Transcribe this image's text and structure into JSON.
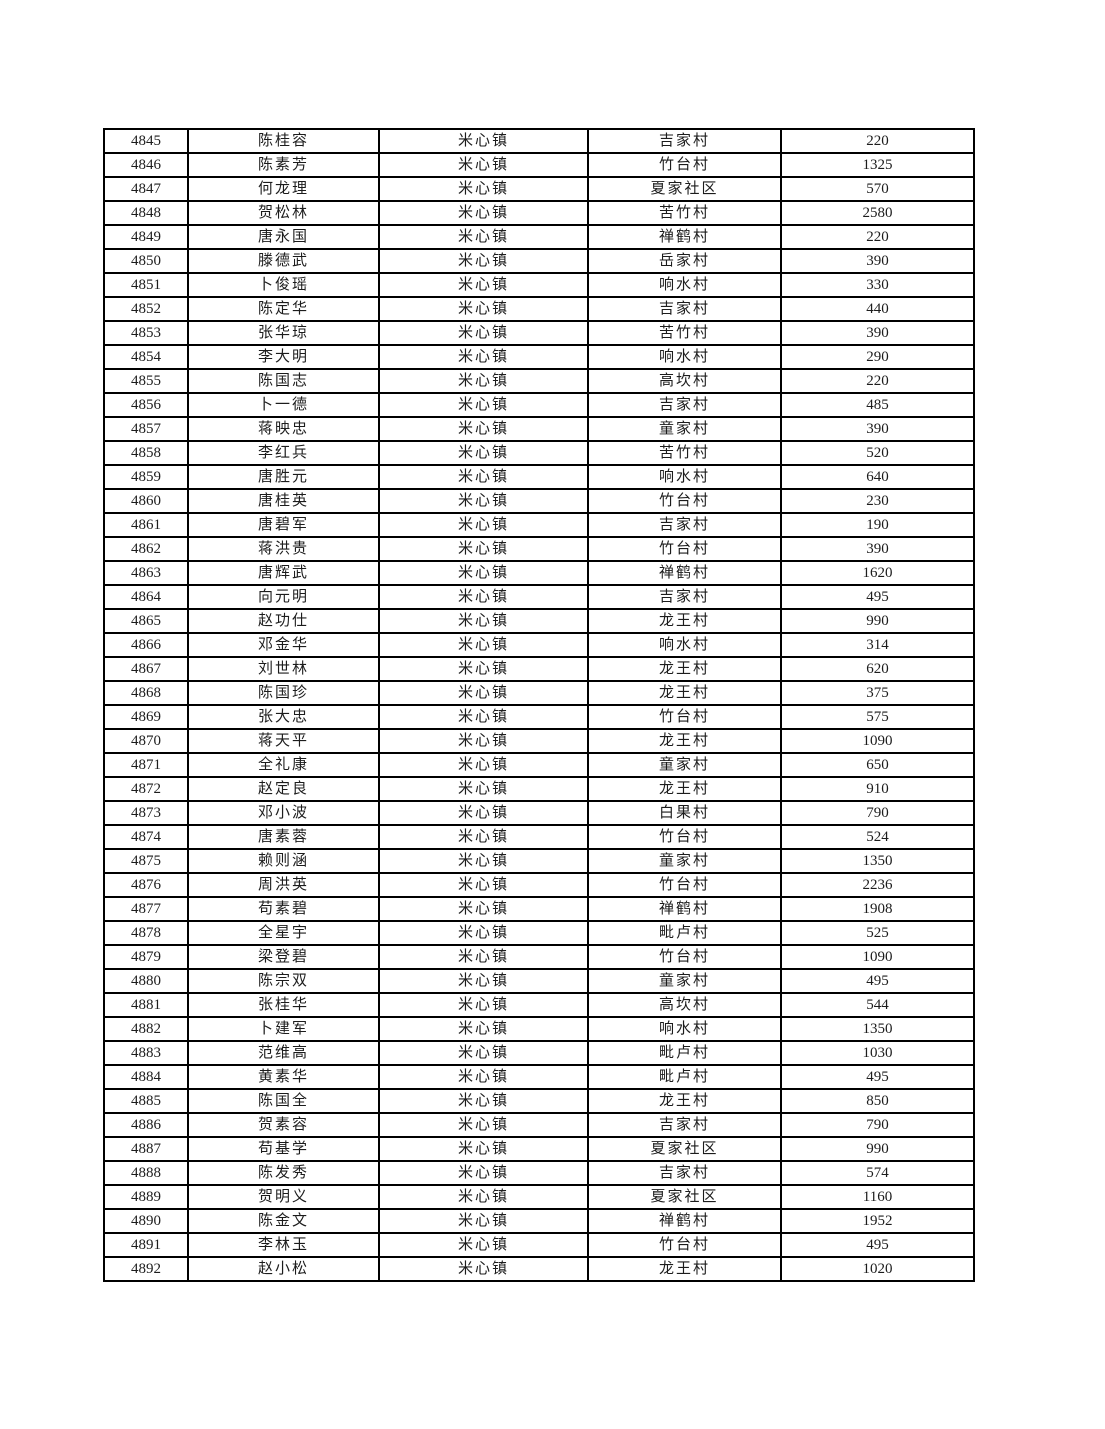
{
  "table": {
    "column_keys": [
      "id",
      "name",
      "town",
      "village",
      "amount"
    ],
    "rows": [
      {
        "id": "4845",
        "name": "陈桂容",
        "town": "米心镇",
        "village": "吉家村",
        "amount": "220"
      },
      {
        "id": "4846",
        "name": "陈素芳",
        "town": "米心镇",
        "village": "竹台村",
        "amount": "1325"
      },
      {
        "id": "4847",
        "name": "何龙理",
        "town": "米心镇",
        "village": "夏家社区",
        "amount": "570"
      },
      {
        "id": "4848",
        "name": "贺松林",
        "town": "米心镇",
        "village": "苦竹村",
        "amount": "2580"
      },
      {
        "id": "4849",
        "name": "唐永国",
        "town": "米心镇",
        "village": "禅鹤村",
        "amount": "220"
      },
      {
        "id": "4850",
        "name": "滕德武",
        "town": "米心镇",
        "village": "岳家村",
        "amount": "390"
      },
      {
        "id": "4851",
        "name": "卜俊瑶",
        "town": "米心镇",
        "village": "响水村",
        "amount": "330"
      },
      {
        "id": "4852",
        "name": "陈定华",
        "town": "米心镇",
        "village": "吉家村",
        "amount": "440"
      },
      {
        "id": "4853",
        "name": "张华琼",
        "town": "米心镇",
        "village": "苦竹村",
        "amount": "390"
      },
      {
        "id": "4854",
        "name": "李大明",
        "town": "米心镇",
        "village": "响水村",
        "amount": "290"
      },
      {
        "id": "4855",
        "name": "陈国志",
        "town": "米心镇",
        "village": "高坎村",
        "amount": "220"
      },
      {
        "id": "4856",
        "name": "卜一德",
        "town": "米心镇",
        "village": "吉家村",
        "amount": "485"
      },
      {
        "id": "4857",
        "name": "蒋映忠",
        "town": "米心镇",
        "village": "童家村",
        "amount": "390"
      },
      {
        "id": "4858",
        "name": "李红兵",
        "town": "米心镇",
        "village": "苦竹村",
        "amount": "520"
      },
      {
        "id": "4859",
        "name": "唐胜元",
        "town": "米心镇",
        "village": "响水村",
        "amount": "640"
      },
      {
        "id": "4860",
        "name": "唐桂英",
        "town": "米心镇",
        "village": "竹台村",
        "amount": "230"
      },
      {
        "id": "4861",
        "name": "唐碧军",
        "town": "米心镇",
        "village": "吉家村",
        "amount": "190"
      },
      {
        "id": "4862",
        "name": "蒋洪贵",
        "town": "米心镇",
        "village": "竹台村",
        "amount": "390"
      },
      {
        "id": "4863",
        "name": "唐辉武",
        "town": "米心镇",
        "village": "禅鹤村",
        "amount": "1620"
      },
      {
        "id": "4864",
        "name": "向元明",
        "town": "米心镇",
        "village": "吉家村",
        "amount": "495"
      },
      {
        "id": "4865",
        "name": "赵功仕",
        "town": "米心镇",
        "village": "龙王村",
        "amount": "990"
      },
      {
        "id": "4866",
        "name": "邓金华",
        "town": "米心镇",
        "village": "响水村",
        "amount": "314"
      },
      {
        "id": "4867",
        "name": "刘世林",
        "town": "米心镇",
        "village": "龙王村",
        "amount": "620"
      },
      {
        "id": "4868",
        "name": "陈国珍",
        "town": "米心镇",
        "village": "龙王村",
        "amount": "375"
      },
      {
        "id": "4869",
        "name": "张大忠",
        "town": "米心镇",
        "village": "竹台村",
        "amount": "575"
      },
      {
        "id": "4870",
        "name": "蒋天平",
        "town": "米心镇",
        "village": "龙王村",
        "amount": "1090"
      },
      {
        "id": "4871",
        "name": "全礼康",
        "town": "米心镇",
        "village": "童家村",
        "amount": "650"
      },
      {
        "id": "4872",
        "name": "赵定良",
        "town": "米心镇",
        "village": "龙王村",
        "amount": "910"
      },
      {
        "id": "4873",
        "name": "邓小波",
        "town": "米心镇",
        "village": "白果村",
        "amount": "790"
      },
      {
        "id": "4874",
        "name": "唐素蓉",
        "town": "米心镇",
        "village": "竹台村",
        "amount": "524"
      },
      {
        "id": "4875",
        "name": "赖则涵",
        "town": "米心镇",
        "village": "童家村",
        "amount": "1350"
      },
      {
        "id": "4876",
        "name": "周洪英",
        "town": "米心镇",
        "village": "竹台村",
        "amount": "2236"
      },
      {
        "id": "4877",
        "name": "苟素碧",
        "town": "米心镇",
        "village": "禅鹤村",
        "amount": "1908"
      },
      {
        "id": "4878",
        "name": "全星宇",
        "town": "米心镇",
        "village": "毗卢村",
        "amount": "525"
      },
      {
        "id": "4879",
        "name": "梁登碧",
        "town": "米心镇",
        "village": "竹台村",
        "amount": "1090"
      },
      {
        "id": "4880",
        "name": "陈宗双",
        "town": "米心镇",
        "village": "童家村",
        "amount": "495"
      },
      {
        "id": "4881",
        "name": "张桂华",
        "town": "米心镇",
        "village": "高坎村",
        "amount": "544"
      },
      {
        "id": "4882",
        "name": "卜建军",
        "town": "米心镇",
        "village": "响水村",
        "amount": "1350"
      },
      {
        "id": "4883",
        "name": "范维高",
        "town": "米心镇",
        "village": "毗卢村",
        "amount": "1030"
      },
      {
        "id": "4884",
        "name": "黄素华",
        "town": "米心镇",
        "village": "毗卢村",
        "amount": "495"
      },
      {
        "id": "4885",
        "name": "陈国全",
        "town": "米心镇",
        "village": "龙王村",
        "amount": "850"
      },
      {
        "id": "4886",
        "name": "贺素容",
        "town": "米心镇",
        "village": "吉家村",
        "amount": "790"
      },
      {
        "id": "4887",
        "name": "苟基学",
        "town": "米心镇",
        "village": "夏家社区",
        "amount": "990"
      },
      {
        "id": "4888",
        "name": "陈发秀",
        "town": "米心镇",
        "village": "吉家村",
        "amount": "574"
      },
      {
        "id": "4889",
        "name": "贺明义",
        "town": "米心镇",
        "village": "夏家社区",
        "amount": "1160"
      },
      {
        "id": "4890",
        "name": "陈金文",
        "town": "米心镇",
        "village": "禅鹤村",
        "amount": "1952"
      },
      {
        "id": "4891",
        "name": "李林玉",
        "town": "米心镇",
        "village": "竹台村",
        "amount": "495"
      },
      {
        "id": "4892",
        "name": "赵小松",
        "town": "米心镇",
        "village": "龙王村",
        "amount": "1020"
      }
    ]
  }
}
